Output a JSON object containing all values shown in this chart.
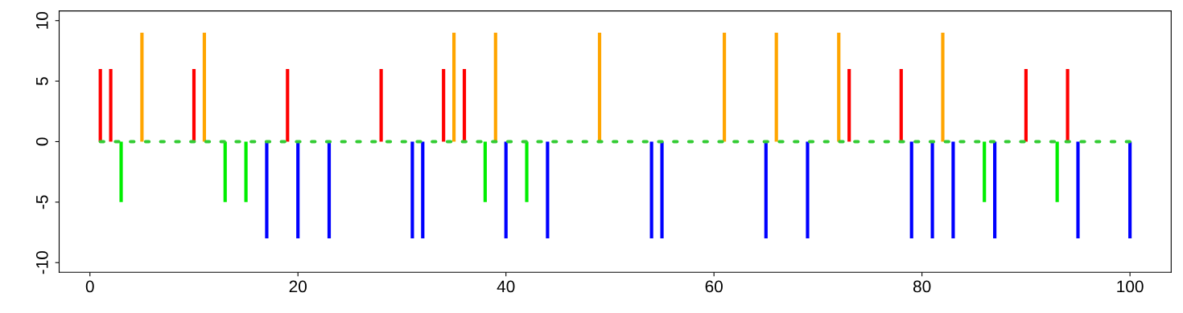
{
  "chart_data": {
    "type": "bar",
    "xlim": [
      -2.96,
      103.96
    ],
    "ylim": [
      -10.8,
      10.8
    ],
    "xticks": [
      0,
      20,
      40,
      60,
      80,
      100
    ],
    "yticks": [
      -10,
      -5,
      0,
      5,
      10
    ],
    "grid": false,
    "legend": false,
    "series": [
      {
        "color": "#ff0000",
        "x": [
          1,
          2,
          10,
          19,
          28,
          34,
          36,
          73,
          78,
          90,
          94
        ],
        "values": [
          6,
          6,
          6,
          6,
          6,
          6,
          6,
          6,
          6,
          6,
          6
        ]
      },
      {
        "color": "#ffa500",
        "x": [
          5,
          11,
          35,
          39,
          49,
          61,
          66,
          72,
          82
        ],
        "values": [
          9,
          9,
          9,
          9,
          9,
          9,
          9,
          9,
          9
        ]
      },
      {
        "color": "#00ee00",
        "x": [
          3,
          13,
          15,
          38,
          42,
          86,
          93
        ],
        "values": [
          -5,
          -5,
          -5,
          -5,
          -5,
          -5,
          -5
        ]
      },
      {
        "color": "#0000ff",
        "x": [
          17,
          20,
          23,
          31,
          32,
          40,
          44,
          54,
          55,
          65,
          69,
          79,
          81,
          83,
          87,
          95,
          100
        ],
        "values": [
          -8,
          -8,
          -8,
          -8,
          -8,
          -8,
          -8,
          -8,
          -8,
          -8,
          -8,
          -8,
          -8,
          -8,
          -8,
          -8,
          -8
        ]
      },
      {
        "type": "line",
        "color": "#33cc33",
        "x": [
          1,
          100
        ],
        "values": [
          0,
          0
        ],
        "line_style": "dotted"
      }
    ]
  }
}
